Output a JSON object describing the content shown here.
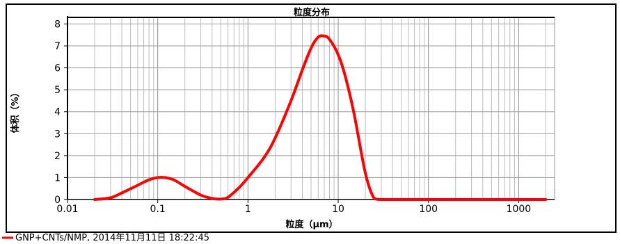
{
  "chart_data": {
    "type": "line",
    "title": "粒度分布",
    "xlabel": "粒度（μm）",
    "ylabel": "体积（%）",
    "x_scale": "log",
    "xlim": [
      0.01,
      2500
    ],
    "ylim": [
      0,
      8.3
    ],
    "x_ticks": [
      0.01,
      0.1,
      1,
      10,
      100,
      1000
    ],
    "x_tick_labels": [
      "0.01",
      "0.1",
      "1",
      "10",
      "100",
      "1000"
    ],
    "y_ticks": [
      0,
      1,
      2,
      3,
      4,
      5,
      6,
      7,
      8
    ],
    "y_tick_labels": [
      "0",
      "1",
      "2",
      "3",
      "4",
      "5",
      "6",
      "7",
      "8"
    ],
    "grid": true,
    "series": [
      {
        "name": "GNP+CNTs/NMP, 2014年11月11日 18:22:45",
        "color": "#ff0000",
        "x": [
          0.02,
          0.03,
          0.04,
          0.06,
          0.08,
          0.1,
          0.12,
          0.15,
          0.2,
          0.3,
          0.4,
          0.5,
          0.6,
          0.8,
          1,
          1.5,
          2,
          3,
          4,
          5,
          6,
          7,
          8,
          10,
          12,
          15,
          20,
          25,
          30,
          50,
          100,
          500,
          1000,
          2000
        ],
        "y": [
          0.0,
          0.08,
          0.3,
          0.65,
          0.9,
          1.0,
          1.0,
          0.9,
          0.6,
          0.2,
          0.05,
          0.02,
          0.1,
          0.55,
          1.0,
          1.9,
          2.8,
          4.5,
          5.9,
          6.9,
          7.4,
          7.45,
          7.3,
          6.6,
          5.6,
          3.9,
          1.2,
          0.05,
          0.0,
          0.0,
          0.0,
          0.0,
          0.0,
          0.0
        ]
      }
    ]
  }
}
